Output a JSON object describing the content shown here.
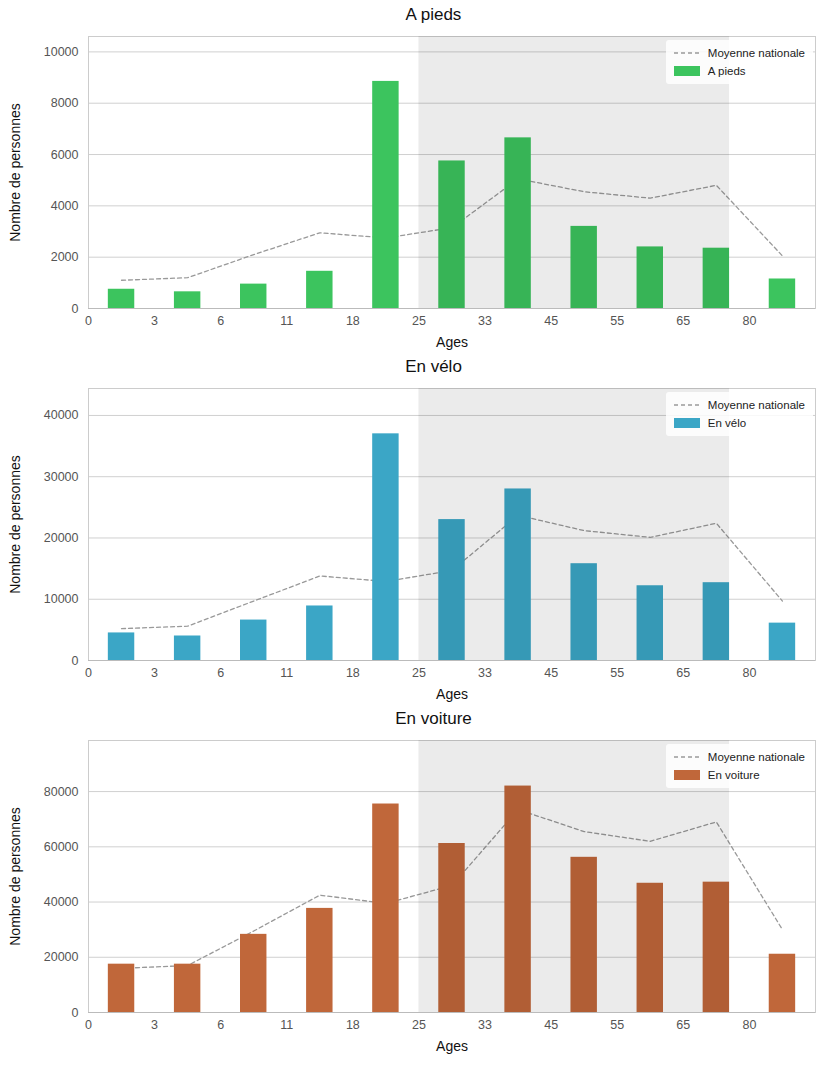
{
  "chart_data": [
    {
      "type": "bar",
      "title": "A pieds",
      "x_label": "Ages",
      "y_label": "Nombre de personnes",
      "categories": [
        "0",
        "3",
        "6",
        "11",
        "18",
        "25",
        "33",
        "45",
        "55",
        "65",
        "80"
      ],
      "series": [
        {
          "name": "Moyenne nationale",
          "type": "line",
          "line_style": "dashed",
          "color": "#999999",
          "values": [
            1100,
            1200,
            2100,
            2950,
            2750,
            3150,
            5050,
            4550,
            4300,
            4800,
            2050
          ]
        },
        {
          "name": "A pieds",
          "type": "bar",
          "color": "#3cc45e",
          "values": [
            750,
            650,
            950,
            1450,
            8850,
            5750,
            6650,
            3200,
            2400,
            2350,
            1150
          ]
        }
      ],
      "ylim": [
        0,
        10600
      ],
      "yticks": [
        0,
        2000,
        4000,
        6000,
        8000,
        10000
      ],
      "grid": true,
      "legend": "upper right"
    },
    {
      "type": "bar",
      "title": "En vélo",
      "x_label": "Ages",
      "y_label": "Nombre de personnes",
      "categories": [
        "0",
        "3",
        "6",
        "11",
        "18",
        "25",
        "33",
        "45",
        "55",
        "65",
        "80"
      ],
      "series": [
        {
          "name": "Moyenne nationale",
          "type": "line",
          "line_style": "dashed",
          "color": "#999999",
          "values": [
            5200,
            5600,
            9700,
            13800,
            12900,
            14700,
            23700,
            21200,
            20100,
            22400,
            9700
          ]
        },
        {
          "name": "En vélo",
          "type": "bar",
          "color": "#3ba6c6",
          "values": [
            4500,
            4000,
            6600,
            8900,
            37000,
            23000,
            28000,
            15800,
            12200,
            12700,
            6100
          ]
        }
      ],
      "ylim": [
        0,
        44400
      ],
      "yticks": [
        0,
        10000,
        20000,
        30000,
        40000
      ],
      "grid": true,
      "legend": "upper right"
    },
    {
      "type": "bar",
      "title": "En voiture",
      "x_label": "Ages",
      "y_label": "Nombre de personnes",
      "categories": [
        "0",
        "3",
        "6",
        "11",
        "18",
        "25",
        "33",
        "45",
        "55",
        "65",
        "80"
      ],
      "series": [
        {
          "name": "Moyenne nationale",
          "type": "line",
          "line_style": "dashed",
          "color": "#999999",
          "values": [
            16000,
            17000,
            29500,
            42500,
            39500,
            46000,
            73500,
            65500,
            62000,
            69000,
            30000
          ]
        },
        {
          "name": "En voiture",
          "type": "bar",
          "color": "#c0673a",
          "values": [
            17500,
            17500,
            28300,
            37700,
            75500,
            61200,
            82000,
            56200,
            46800,
            47200,
            21100
          ]
        }
      ],
      "ylim": [
        0,
        98500
      ],
      "yticks": [
        0,
        20000,
        40000,
        60000,
        80000
      ],
      "grid": true,
      "legend": "upper right"
    }
  ]
}
